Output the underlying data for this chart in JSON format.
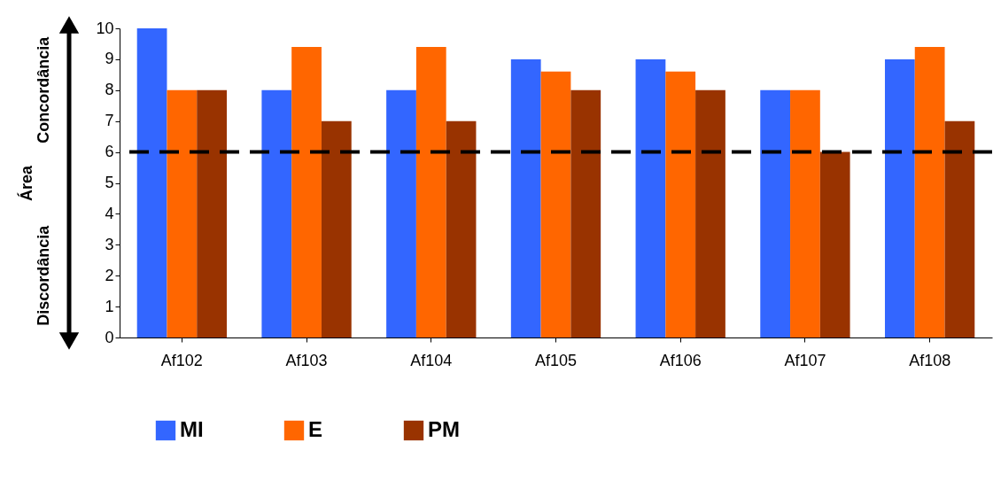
{
  "chart_data": {
    "type": "bar",
    "ylabel": "Área",
    "categories": [
      "Af102",
      "Af103",
      "Af104",
      "Af105",
      "Af106",
      "Af107",
      "Af108"
    ],
    "series": [
      {
        "name": "MI",
        "color": "#3366ff",
        "values": [
          10,
          8,
          8,
          9,
          9,
          8,
          9
        ]
      },
      {
        "name": "E",
        "color": "#ff6600",
        "values": [
          8,
          9.4,
          9.4,
          8.6,
          8.6,
          8,
          9.4
        ]
      },
      {
        "name": "PM",
        "color": "#993300",
        "values": [
          8,
          7,
          7,
          8,
          8,
          6,
          7
        ]
      }
    ],
    "ylim": [
      0,
      10
    ],
    "yticks": [
      0,
      1,
      2,
      3,
      4,
      5,
      6,
      7,
      8,
      9,
      10
    ],
    "ref_lines": [
      {
        "axis": "y",
        "value": 6,
        "color": "#000000",
        "line_style": "dashed"
      }
    ],
    "annotations": [
      "Concordância",
      "Discordância"
    ],
    "grid": false,
    "legend": "bottom"
  }
}
